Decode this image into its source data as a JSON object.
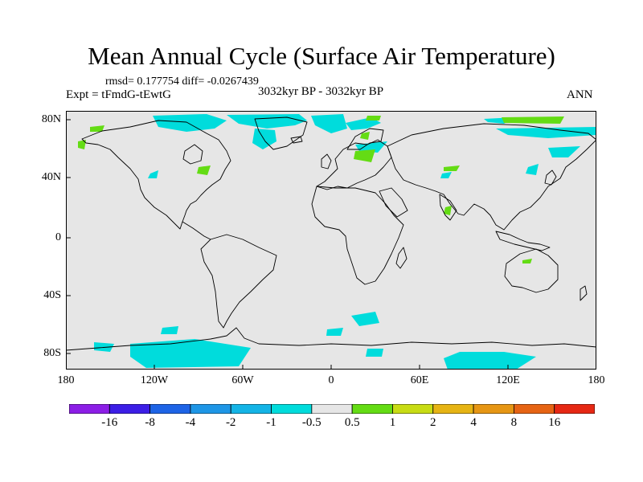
{
  "title": "Mean Annual Cycle (Surface Air Temperature)",
  "stats": "rmsd= 0.177754 diff= -0.0267439",
  "experiment": "Expt = tFmdG-tEwtG",
  "period": "3032kyr BP - 3032kyr BP",
  "season": "ANN",
  "map": {
    "background_color": "#e6e6e6",
    "coastline_color": "#000000",
    "y_tick_labels": [
      "80N",
      "40N",
      "0",
      "40S",
      "80S"
    ],
    "x_tick_labels": [
      "180",
      "120W",
      "60W",
      "0",
      "60E",
      "120E",
      "180"
    ]
  },
  "colorbar": {
    "labels": [
      "-16",
      "-8",
      "-4",
      "-2",
      "-1",
      "-0.5",
      "0.5",
      "1",
      "2",
      "4",
      "8",
      "16"
    ],
    "colors": [
      "#8c1ee6",
      "#3c1ee6",
      "#1e64e6",
      "#1e96e6",
      "#14b4e6",
      "#00dcdc",
      "#e6e6e6",
      "#64dc14",
      "#c8dc14",
      "#e6b414",
      "#e69614",
      "#e66414",
      "#e62814"
    ]
  }
}
